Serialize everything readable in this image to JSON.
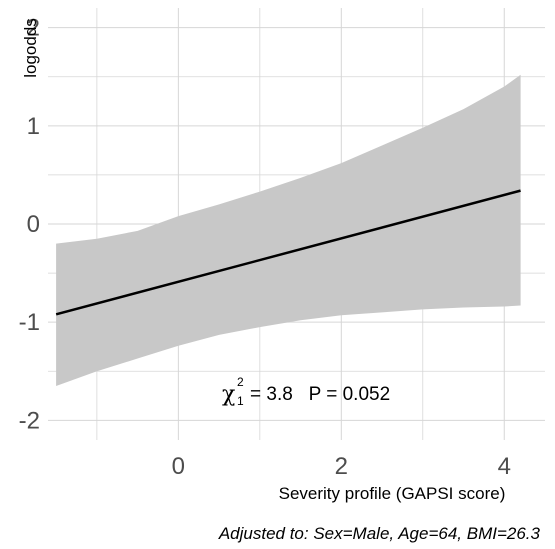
{
  "chart_data": {
    "type": "line",
    "xlabel": "Severity profile (GAPSI score)",
    "ylabel": "logodds",
    "xlim": [
      -1.6,
      4.5
    ],
    "ylim": [
      -2.2,
      2.2
    ],
    "x_ticks": [
      0,
      2,
      4
    ],
    "x_tick_labels": [
      "0",
      "2",
      "4"
    ],
    "y_ticks": [
      -2,
      -1,
      0,
      1,
      2
    ],
    "y_tick_labels": [
      "-2",
      "-1",
      "0",
      "1",
      "2"
    ],
    "grid": true,
    "series": [
      {
        "type": "line",
        "x": [
          -1.5,
          4.2
        ],
        "y": [
          -0.92,
          0.34
        ]
      }
    ],
    "confidence_band": {
      "x": [
        -1.5,
        -1.0,
        -0.5,
        0.0,
        0.5,
        1.0,
        1.5,
        2.0,
        2.5,
        3.0,
        3.5,
        4.0,
        4.2
      ],
      "lower": [
        -1.65,
        -1.5,
        -1.37,
        -1.24,
        -1.13,
        -1.05,
        -0.98,
        -0.93,
        -0.9,
        -0.87,
        -0.85,
        -0.84,
        -0.83
      ],
      "upper": [
        -0.2,
        -0.15,
        -0.07,
        0.08,
        0.2,
        0.33,
        0.47,
        0.62,
        0.8,
        0.98,
        1.17,
        1.4,
        1.52
      ]
    },
    "annotation": {
      "chi_symbol": "χ",
      "chi_sup": "2",
      "chi_sub": "1",
      "chi_rest": "= 3.8   P = 0.052"
    },
    "note": "Adjusted to: Sex=Male, Age=64, BMI=26.3"
  },
  "colors": {
    "band": "#c8c8c8",
    "line": "#000000",
    "grid": "#d6d6d6",
    "tick_text": "#4d4d4d"
  }
}
